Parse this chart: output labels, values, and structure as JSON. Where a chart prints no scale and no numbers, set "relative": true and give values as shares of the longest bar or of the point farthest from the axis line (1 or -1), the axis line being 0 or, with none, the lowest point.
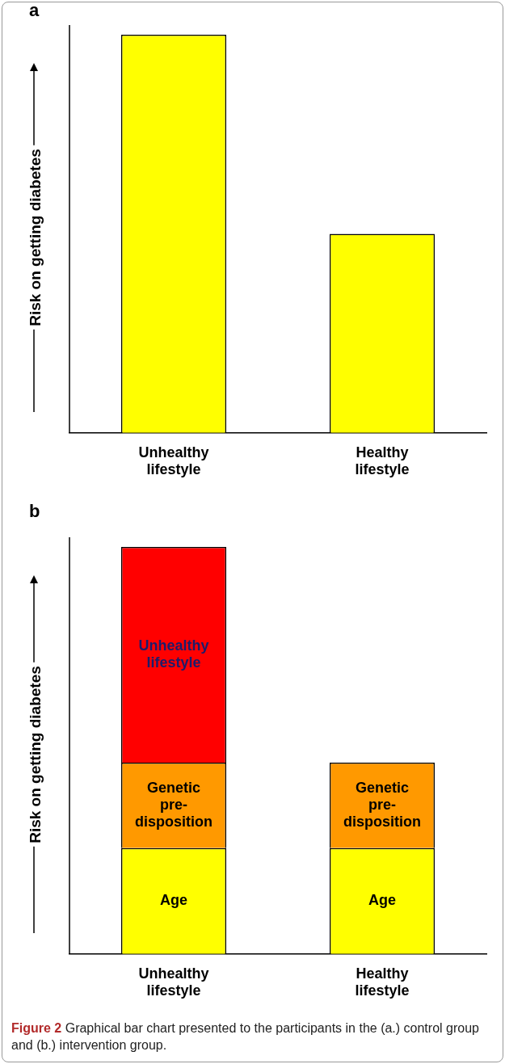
{
  "chart_data": [
    {
      "type": "bar",
      "title": "a",
      "ylabel": "Risk on getting diabetes",
      "relative": true,
      "categories": [
        "Unhealthy lifestyle",
        "Healthy lifestyle"
      ],
      "series": [
        {
          "color": "#ffff00",
          "values": [
            1,
            0.5
          ]
        }
      ],
      "legend": false,
      "grid": false
    },
    {
      "type": "bar",
      "title": "b",
      "ylabel": "Risk on getting diabetes",
      "relative": true,
      "stacked": true,
      "categories": [
        "Unhealthy lifestyle",
        "Healthy lifestyle"
      ],
      "series": [
        {
          "name": "Age",
          "color": "#ffff00",
          "values": [
            0.26,
            0.26
          ]
        },
        {
          "name": "Genetic pre-disposition",
          "color": "#ff9900",
          "values": [
            0.21,
            0.21
          ]
        },
        {
          "name": "Unhealthy lifestyle",
          "color": "#ff0000",
          "values": [
            0.53,
            null
          ]
        }
      ],
      "legend": false,
      "grid": false,
      "annotations": [
        "Figure 2 Graphical bar chart presented to the participants in the (a.) control group and (b.) intervention group."
      ]
    }
  ]
}
